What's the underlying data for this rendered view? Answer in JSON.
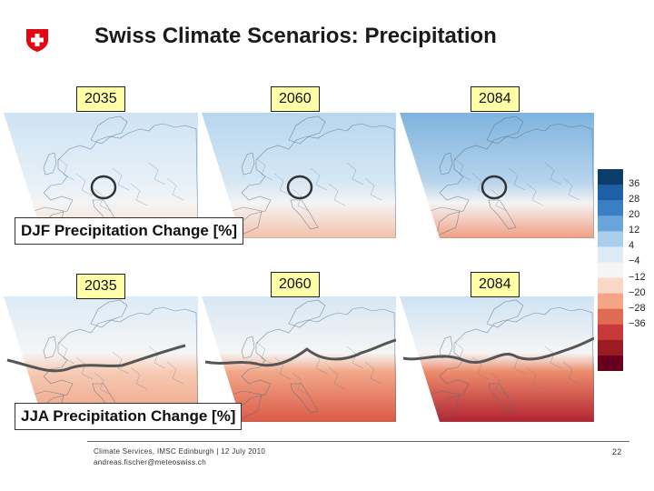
{
  "header": {
    "title": "Swiss Climate Scenarios: Precipitation",
    "logo": "swiss-cross-logo"
  },
  "colors": {
    "swiss_red": "#e30613",
    "year_label_bg": "#ffffa8"
  },
  "years": [
    "2035",
    "2060",
    "2084"
  ],
  "rows": [
    {
      "label": "DJF Precipitation Change [%]",
      "season": "DJF"
    },
    {
      "label": "JJA Precipitation Change [%]",
      "season": "JJA"
    }
  ],
  "chart_data": {
    "type": "heatmap",
    "title": "Swiss Climate Scenarios: Precipitation",
    "panels": [
      {
        "season": "DJF",
        "year": "2035"
      },
      {
        "season": "DJF",
        "year": "2060"
      },
      {
        "season": "DJF",
        "year": "2084"
      },
      {
        "season": "JJA",
        "year": "2035"
      },
      {
        "season": "JJA",
        "year": "2060"
      },
      {
        "season": "JJA",
        "year": "2084"
      }
    ],
    "colorbar": {
      "tick_labels": [
        "36",
        "28",
        "20",
        "12",
        "4",
        "−4",
        "−12",
        "−20",
        "−28",
        "−36"
      ],
      "colors": [
        "#0b3d6b",
        "#1f5fa8",
        "#3a7fc4",
        "#6aa5da",
        "#a9cdeb",
        "#dceaf6",
        "#f5f5f5",
        "#fbd8c6",
        "#f4a585",
        "#e06b52",
        "#c8393a",
        "#9c1c26",
        "#67001f"
      ]
    }
  },
  "footer": {
    "line1": "Climate Services, IMSC Edinburgh | 12 July 2010",
    "line2": "andreas.fischer@meteoswiss.ch",
    "page": "22"
  }
}
